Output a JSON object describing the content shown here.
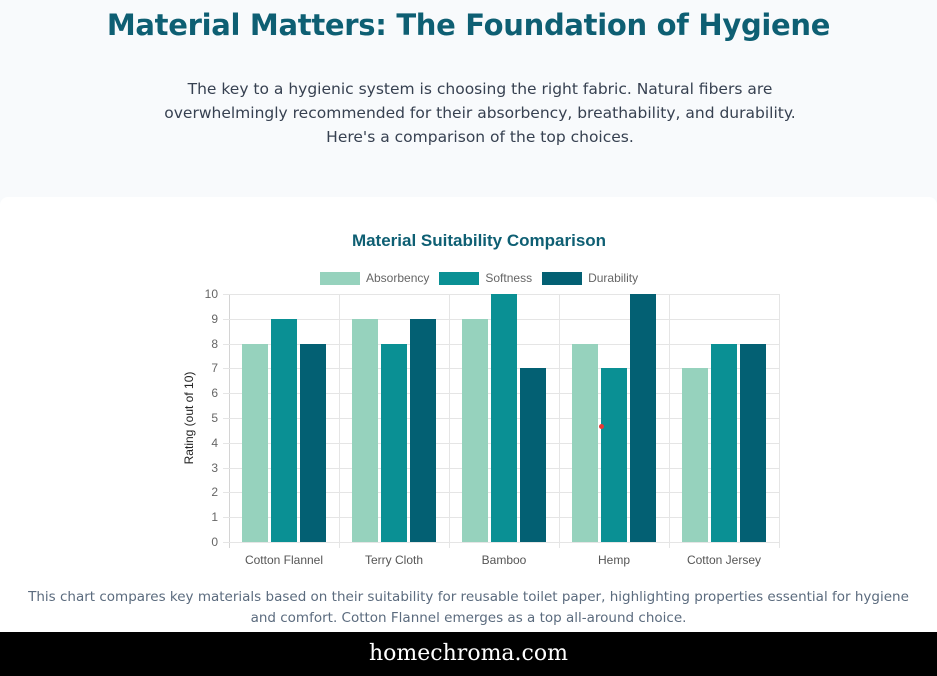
{
  "hero": {
    "title": "Material Matters: The Foundation of Hygiene",
    "intro": "The key to a hygienic system is choosing the right fabric. Natural fibers are overwhelmingly recommended for their absorbency, breathability, and durability. Here's a comparison of the top choices."
  },
  "chart_section": {
    "caption": "This chart compares key materials based on their suitability for reusable toilet paper, highlighting properties essential for hygiene and comfort. Cotton Flannel emerges as a top all-around choice."
  },
  "footer": {
    "text": "homechroma.com"
  },
  "colors": {
    "heading": "#0e5f73",
    "absorbency": "#96d2bd",
    "softness": "#0a9094",
    "durability": "#036073"
  },
  "chart_data": {
    "type": "bar",
    "title": "Material Suitability Comparison",
    "xlabel": "",
    "ylabel": "Rating (out of 10)",
    "ylim": [
      0,
      10
    ],
    "yticks": [
      0,
      1,
      2,
      3,
      4,
      5,
      6,
      7,
      8,
      9,
      10
    ],
    "grid": true,
    "legend_position": "top",
    "categories": [
      "Cotton Flannel",
      "Terry Cloth",
      "Bamboo",
      "Hemp",
      "Cotton Jersey"
    ],
    "series": [
      {
        "name": "Absorbency",
        "color": "#96d2bd",
        "values": [
          8,
          9,
          9,
          8,
          7
        ]
      },
      {
        "name": "Softness",
        "color": "#0a9094",
        "values": [
          9,
          8,
          10,
          7,
          8
        ]
      },
      {
        "name": "Durability",
        "color": "#036073",
        "values": [
          8,
          9,
          7,
          10,
          8
        ]
      }
    ]
  }
}
